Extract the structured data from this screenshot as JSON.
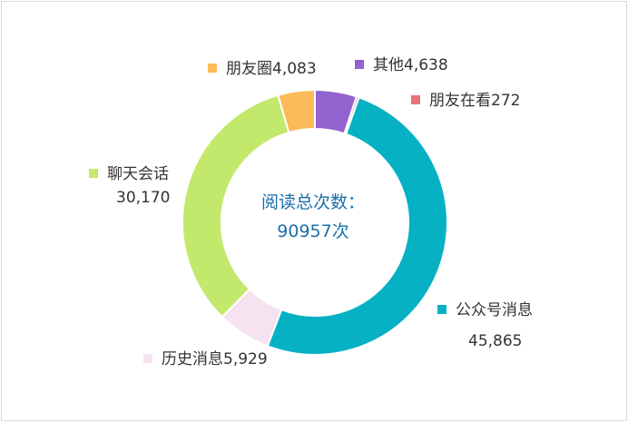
{
  "chart_data": {
    "type": "pie",
    "variant": "donut",
    "title": "",
    "center_label": {
      "line1": "阅读总次数：",
      "line2": "90957次"
    },
    "total": 90957,
    "slices": [
      {
        "name": "其他",
        "value": 4638,
        "color": "#9262cf"
      },
      {
        "name": "朋友在看",
        "value": 272,
        "color": "#e8737a"
      },
      {
        "name": "公众号消息",
        "value": 45865,
        "color": "#06b1c4"
      },
      {
        "name": "历史消息",
        "value": 5929,
        "color": "#f5e3ef"
      },
      {
        "name": "聊天会话",
        "value": 30170,
        "color": "#c2e96b"
      },
      {
        "name": "朋友圈",
        "value": 4083,
        "color": "#fbbb58"
      }
    ],
    "legend_position": "outside labels"
  },
  "labels": {
    "other": {
      "name": "其他",
      "value": "4,638"
    },
    "friends_watching": {
      "name": "朋友在看",
      "value": "272"
    },
    "official_account": {
      "name": "公众号消息",
      "value": "45,865"
    },
    "history": {
      "name": "历史消息",
      "value": "5,929"
    },
    "chat": {
      "name": "聊天会话",
      "value": "30,170"
    },
    "moments": {
      "name": "朋友圈",
      "value": "4,083"
    }
  },
  "center": {
    "title": "阅读总次数：",
    "value": "90957次"
  }
}
